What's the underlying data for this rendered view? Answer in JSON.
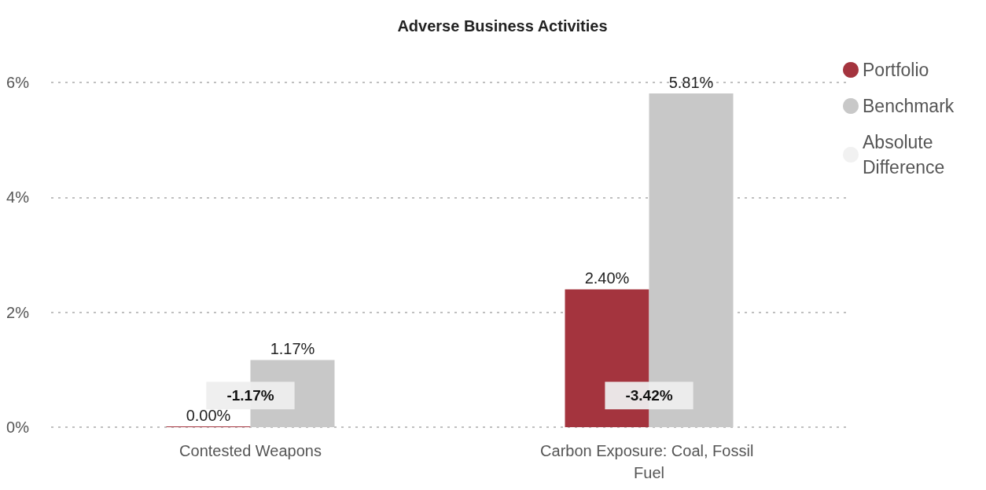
{
  "chart_data": {
    "type": "bar",
    "title": "Adverse Business Activities",
    "categories": [
      "Contested Weapons",
      "Carbon Exposure: Coal, Fossil Fuel"
    ],
    "series": [
      {
        "name": "Portfolio",
        "color": "#a4343e",
        "values": [
          0,
          2.4
        ],
        "value_labels": [
          "0.00%",
          "2.40%"
        ]
      },
      {
        "name": "Benchmark",
        "color": "#c8c8c8",
        "values": [
          1.17,
          5.81
        ],
        "value_labels": [
          "1.17%",
          "5.81%"
        ]
      },
      {
        "name": "Absolute Difference",
        "type": "scatter",
        "color": "#eeeeee",
        "values": [
          null,
          null
        ]
      }
    ],
    "annotations": [
      {
        "text": "-1.17%",
        "x": "Contested Weapons",
        "y": 0.55
      },
      {
        "text": "-3.42%",
        "x": "Carbon Exposure: Coal, Fossil Fuel",
        "y": 0.55
      }
    ],
    "ylim": [
      0,
      6
    ],
    "yticks": [
      {
        "value": 0,
        "label": "0%"
      },
      {
        "value": 2,
        "label": "2%"
      },
      {
        "value": 4,
        "label": "4%"
      },
      {
        "value": 6,
        "label": "6%"
      }
    ],
    "grid": "y",
    "legend": "top right"
  }
}
